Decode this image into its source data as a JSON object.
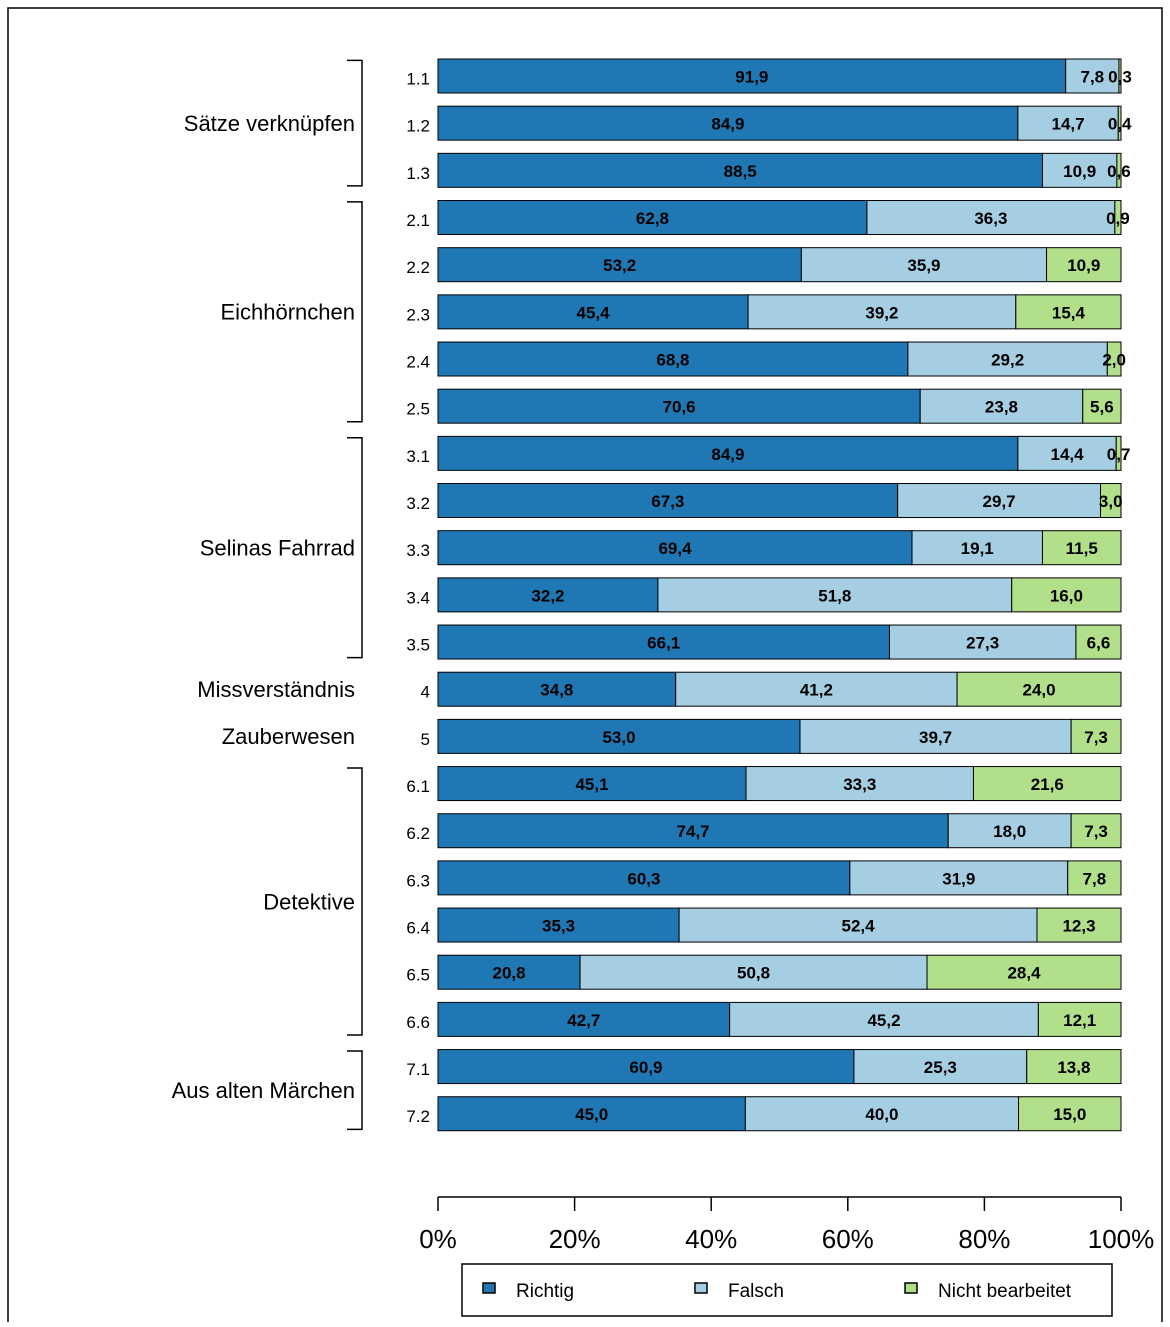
{
  "chart_data": {
    "type": "stacked-bar-horizontal",
    "groups": [
      {
        "name": "Sätze verknüpfen",
        "categories": [
          "1.1",
          "1.2",
          "1.3"
        ]
      },
      {
        "name": "Eichhörnchen",
        "categories": [
          "2.1",
          "2.2",
          "2.3",
          "2.4",
          "2.5"
        ]
      },
      {
        "name": "Selinas Fahrrad",
        "categories": [
          "3.1",
          "3.2",
          "3.3",
          "3.4",
          "3.5"
        ]
      },
      {
        "name": "Missverständnis",
        "categories": [
          "4"
        ]
      },
      {
        "name": "Zauberwesen",
        "categories": [
          "5"
        ]
      },
      {
        "name": "Detektive",
        "categories": [
          "6.1",
          "6.2",
          "6.3",
          "6.4",
          "6.5",
          "6.6"
        ]
      },
      {
        "name": "Aus alten Märchen",
        "categories": [
          "7.1",
          "7.2"
        ]
      }
    ],
    "series": [
      {
        "name": "Richtig",
        "color": "#1f77b4",
        "values": [
          91.9,
          84.9,
          88.5,
          62.8,
          53.2,
          45.4,
          68.8,
          70.6,
          84.9,
          67.3,
          69.4,
          32.2,
          66.1,
          34.8,
          53.0,
          45.1,
          74.7,
          60.3,
          35.3,
          20.8,
          42.7,
          60.9,
          45.0
        ],
        "value_labels": [
          "91,9",
          "84,9",
          "88,5",
          "62,8",
          "53,2",
          "45,4",
          "68,8",
          "70,6",
          "84,9",
          "67,3",
          "69,4",
          "32,2",
          "66,1",
          "34,8",
          "53,0",
          "45,1",
          "74,7",
          "60,3",
          "35,3",
          "20,8",
          "42,7",
          "60,9",
          "45,0"
        ]
      },
      {
        "name": "Falsch",
        "color": "#a6cee3",
        "values": [
          7.8,
          14.7,
          10.9,
          36.3,
          35.9,
          39.2,
          29.2,
          23.8,
          14.4,
          29.7,
          19.1,
          51.8,
          27.3,
          41.2,
          39.7,
          33.3,
          18.0,
          31.9,
          52.4,
          50.8,
          45.2,
          25.3,
          40.0
        ],
        "value_labels": [
          "7,8",
          "14,7",
          "10,9",
          "36,3",
          "35,9",
          "39,2",
          "29,2",
          "23,8",
          "14,4",
          "29,7",
          "19,1",
          "51,8",
          "27,3",
          "41,2",
          "39,7",
          "33,3",
          "18,0",
          "31,9",
          "52,4",
          "50,8",
          "45,2",
          "25,3",
          "40,0"
        ]
      },
      {
        "name": "Nicht bearbeitet",
        "color": "#b2df8a",
        "values": [
          0.3,
          0.4,
          0.6,
          0.9,
          10.9,
          15.4,
          2.0,
          5.6,
          0.7,
          3.0,
          11.5,
          16.0,
          6.6,
          24.0,
          7.3,
          21.6,
          7.3,
          7.8,
          12.3,
          28.4,
          12.1,
          13.8,
          15.0
        ],
        "value_labels": [
          "0,3",
          "0,4",
          "0,6",
          "0,9",
          "10,9",
          "15,4",
          "2,0",
          "5,6",
          "0,7",
          "3,0",
          "11,5",
          "16,0",
          "6,6",
          "24,0",
          "7,3",
          "21,6",
          "7,3",
          "7,8",
          "12,3",
          "28,4",
          "12,1",
          "13,8",
          "15,0"
        ]
      }
    ],
    "xlim": [
      0,
      100
    ],
    "xticks": [
      {
        "value": 0,
        "label": "0%"
      },
      {
        "value": 20,
        "label": "20%"
      },
      {
        "value": 40,
        "label": "40%"
      },
      {
        "value": 60,
        "label": "60%"
      },
      {
        "value": 80,
        "label": "80%"
      },
      {
        "value": 100,
        "label": "100%"
      }
    ],
    "legend": "bottom"
  }
}
